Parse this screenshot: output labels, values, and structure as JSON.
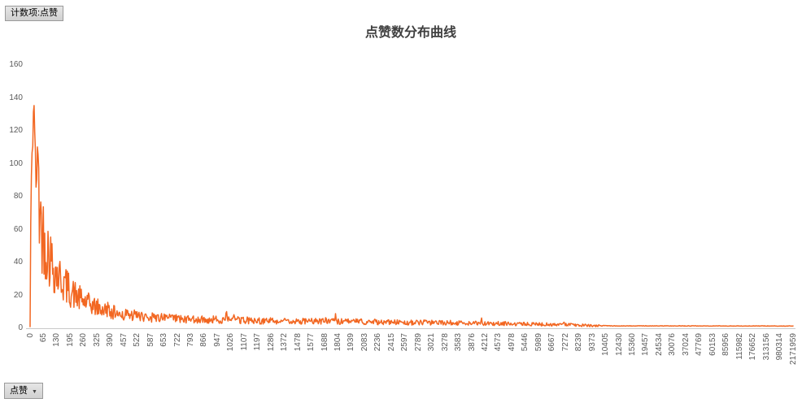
{
  "pivot": {
    "value_field_button": "计数项:点赞",
    "axis_field_button": "点赞",
    "dropdown_glyph": "▼"
  },
  "colors": {
    "series_orange": "#f26722",
    "title_gray": "#3f3f3f",
    "axis_text_gray": "#595959",
    "axis_line_gray": "#c9c9c9",
    "button_border": "#9a9a9a"
  },
  "chart_data": {
    "type": "line",
    "title": "点赞数分布曲线",
    "series_name": "计数项:点赞",
    "x_field": "点赞",
    "legend": "none",
    "grid": false,
    "ylim": [
      0,
      160
    ],
    "y_ticks": [
      0,
      20,
      40,
      60,
      80,
      100,
      120,
      140,
      160
    ],
    "peak_value": 138,
    "x_tick_labels": [
      "0",
      "65",
      "130",
      "195",
      "260",
      "325",
      "390",
      "457",
      "522",
      "587",
      "653",
      "722",
      "793",
      "866",
      "947",
      "1026",
      "1107",
      "1197",
      "1286",
      "1372",
      "1478",
      "1577",
      "1688",
      "1804",
      "1939",
      "2083",
      "2236",
      "2415",
      "2597",
      "2789",
      "3021",
      "3278",
      "3583",
      "3876",
      "4212",
      "4573",
      "4978",
      "5446",
      "5989",
      "6667",
      "7272",
      "8239",
      "9373",
      "10405",
      "12430",
      "15360",
      "19457",
      "24534",
      "30076",
      "37024",
      "47769",
      "60153",
      "85956",
      "115982",
      "176652",
      "313156",
      "980314",
      "2171959"
    ],
    "envelope": [
      [
        0.0,
        1
      ],
      [
        0.001,
        78
      ],
      [
        0.002,
        100
      ],
      [
        0.003,
        118
      ],
      [
        0.005,
        138
      ],
      [
        0.0065,
        120
      ],
      [
        0.008,
        88
      ],
      [
        0.0095,
        112
      ],
      [
        0.012,
        104
      ],
      [
        0.016,
        86
      ],
      [
        0.02,
        75
      ],
      [
        0.025,
        65
      ],
      [
        0.03,
        56
      ],
      [
        0.035,
        48
      ],
      [
        0.041,
        43
      ],
      [
        0.046,
        38
      ],
      [
        0.057,
        30
      ],
      [
        0.067,
        25
      ],
      [
        0.078,
        21
      ],
      [
        0.089,
        18
      ],
      [
        0.1,
        15.5
      ],
      [
        0.115,
        13
      ],
      [
        0.132,
        11.5
      ],
      [
        0.153,
        10
      ],
      [
        0.174,
        9
      ],
      [
        0.206,
        8
      ],
      [
        0.238,
        7.5
      ],
      [
        0.281,
        7
      ],
      [
        0.324,
        6.5
      ],
      [
        0.367,
        6
      ],
      [
        0.41,
        6
      ],
      [
        0.452,
        5.5
      ],
      [
        0.495,
        5
      ],
      [
        0.538,
        5
      ],
      [
        0.581,
        4.5
      ],
      [
        0.623,
        4
      ],
      [
        0.666,
        3.5
      ],
      [
        0.71,
        3
      ],
      [
        0.74,
        2.2
      ],
      [
        0.76,
        1.6
      ],
      [
        1.0,
        1.5
      ]
    ],
    "n_points": 1150,
    "noise": {
      "seed": 42,
      "min_factor_head": 0.88,
      "min_factor_mid": 0.38,
      "min_factor_tail": 0.8,
      "spike_chance": 0.018,
      "spike_gain": 1.7
    }
  }
}
